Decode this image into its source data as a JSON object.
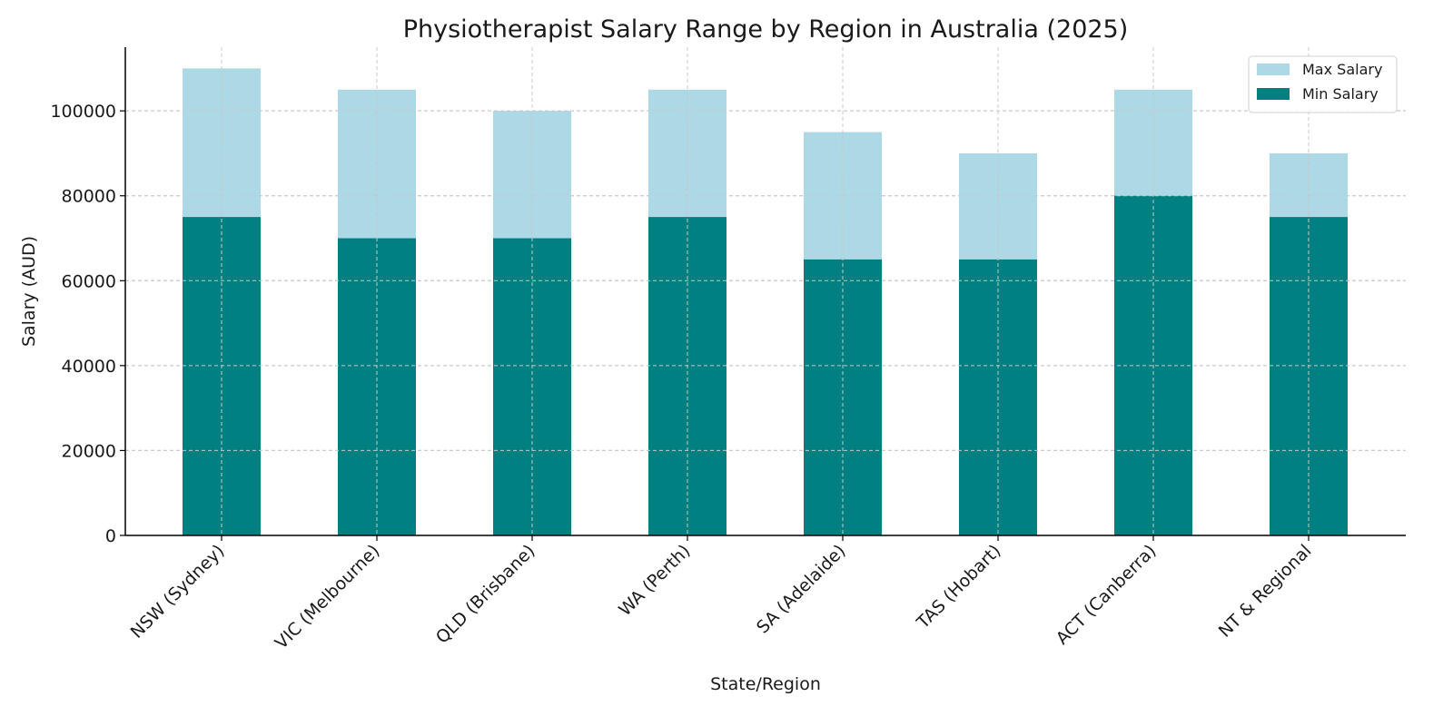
{
  "chart_data": {
    "type": "bar",
    "stacked": "overlay",
    "title": "Physiotherapist Salary Range by Region in Australia (2025)",
    "xlabel": "State/Region",
    "ylabel": "Salary (AUD)",
    "ylim": [
      0,
      115000
    ],
    "yticks": [
      0,
      20000,
      40000,
      60000,
      80000,
      100000
    ],
    "grid": true,
    "legend_position": "top-right",
    "categories": [
      "NSW (Sydney)",
      "VIC (Melbourne)",
      "QLD (Brisbane)",
      "WA (Perth)",
      "SA (Adelaide)",
      "TAS (Hobart)",
      "ACT (Canberra)",
      "NT & Regional"
    ],
    "series": [
      {
        "name": "Max Salary",
        "color": "#add8e6",
        "values": [
          110000,
          105000,
          100000,
          105000,
          95000,
          90000,
          105000,
          90000
        ]
      },
      {
        "name": "Min Salary",
        "color": "#008080",
        "values": [
          75000,
          70000,
          70000,
          75000,
          65000,
          65000,
          80000,
          75000
        ]
      }
    ]
  }
}
